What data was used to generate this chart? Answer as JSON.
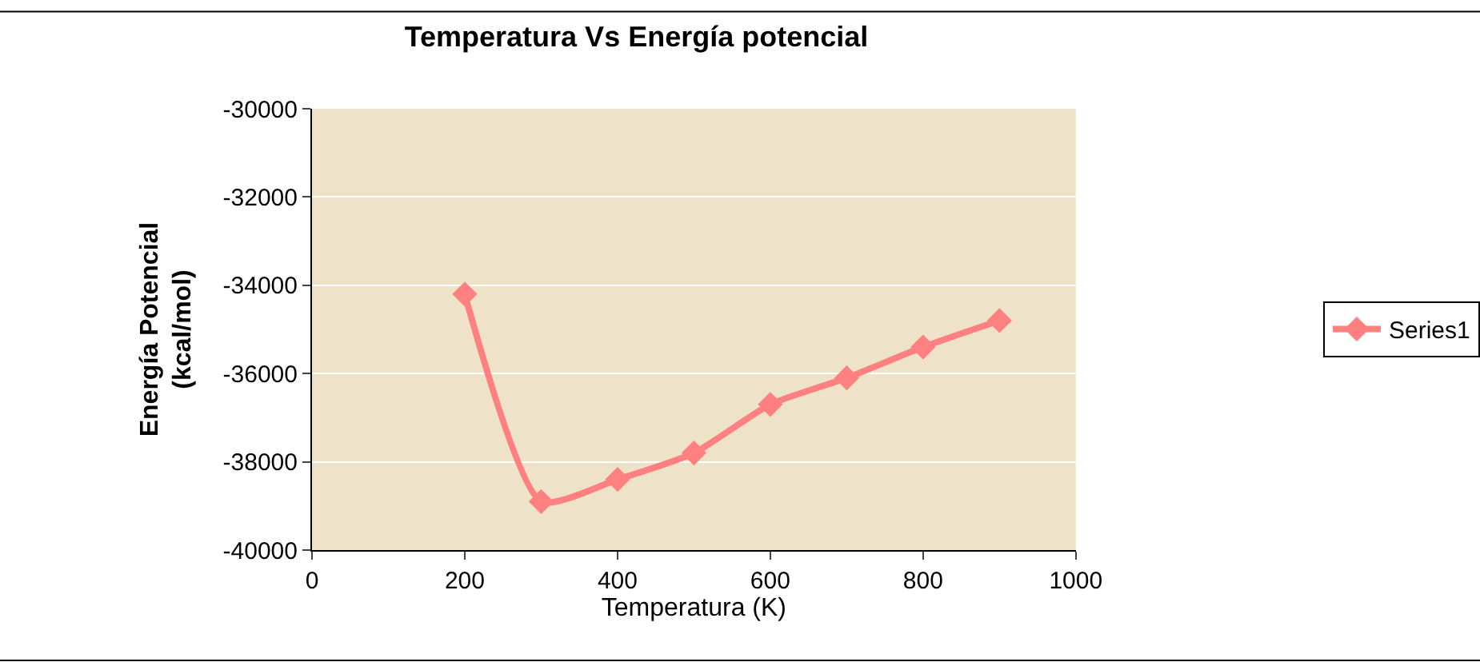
{
  "chart_data": {
    "type": "line",
    "title": "Temperatura Vs Energía potencial",
    "xlabel": "Temperatura (K)",
    "ylabel": "Energía Potencial\n(kcal/mol)",
    "x": [
      200,
      300,
      400,
      500,
      600,
      700,
      800,
      900
    ],
    "series": [
      {
        "name": "Series1",
        "color": "#ff8080",
        "values": [
          -34200,
          -38900,
          -38400,
          -37800,
          -36700,
          -36100,
          -35400,
          -34800
        ]
      }
    ],
    "xlim": [
      0,
      1000
    ],
    "xticks": [
      0,
      200,
      400,
      600,
      800,
      1000
    ],
    "ylim": [
      -40000,
      -30000
    ],
    "yticks": [
      -40000,
      -38000,
      -36000,
      -34000,
      -32000,
      -30000
    ],
    "grid": "y",
    "legend": "right",
    "marker": "diamond",
    "line_style": "solid"
  }
}
